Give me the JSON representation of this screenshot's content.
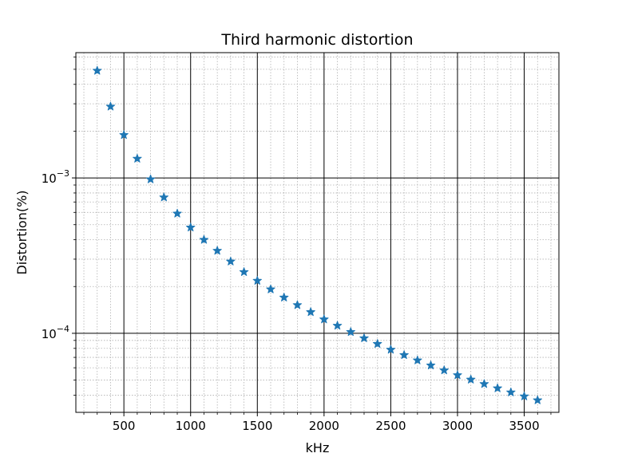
{
  "chart_data": {
    "type": "scatter",
    "title": "Third harmonic distortion",
    "xlabel": "kHz",
    "ylabel": "Distortion(%)",
    "xlim": [
      140,
      3760
    ],
    "ylim": [
      3.1e-05,
      0.0064
    ],
    "yscale": "log",
    "xticks": [
      500,
      1000,
      1500,
      2000,
      2500,
      3000,
      3500
    ],
    "xtick_labels": [
      "500",
      "1000",
      "1500",
      "2000",
      "2500",
      "3000",
      "3500"
    ],
    "yticks": [
      0.0001,
      0.001
    ],
    "ytick_labels": [
      {
        "base": "10",
        "exp": "−4"
      },
      {
        "base": "10",
        "exp": "−3"
      }
    ],
    "grid": {
      "major": true,
      "minor": true
    },
    "marker": "star",
    "color": "#1f77b4",
    "series": [
      {
        "x": [
          300,
          400,
          500,
          600,
          700,
          800,
          900,
          1000,
          1100,
          1200,
          1300,
          1400,
          1500,
          1600,
          1700,
          1800,
          1900,
          2000,
          2100,
          2200,
          2300,
          2400,
          2500,
          2600,
          2700,
          2800,
          2900,
          3000,
          3100,
          3200,
          3300,
          3400,
          3500,
          3600
        ],
        "y": [
          0.0049,
          0.00288,
          0.00189,
          0.00133,
          0.00098,
          0.00075,
          0.00059,
          0.00048,
          0.0004,
          0.00034,
          0.00029,
          0.000248,
          0.000218,
          0.000192,
          0.00017,
          0.000152,
          0.000137,
          0.000123,
          0.000112,
          0.000102,
          9.3e-05,
          8.55e-05,
          7.85e-05,
          7.25e-05,
          6.7e-05,
          6.22e-05,
          5.78e-05,
          5.38e-05,
          5.04e-05,
          4.72e-05,
          4.43e-05,
          4.17e-05,
          3.93e-05,
          3.71e-05
        ]
      }
    ]
  }
}
